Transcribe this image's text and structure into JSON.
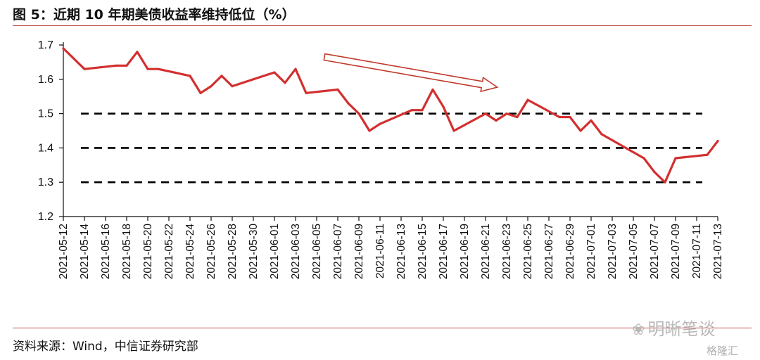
{
  "header": {
    "title": "图 5：近期 10 年期美债收益率维持低位（%）"
  },
  "footer": {
    "source": "资料来源：Wind，中信证券研究部"
  },
  "watermark": {
    "icon": "wechat-icon",
    "text": "明晰笔谈",
    "text2": "格隆汇"
  },
  "colors": {
    "line": "#d32f2f",
    "reference": "#000000",
    "arrow": "#c0392b",
    "rule": "#c0504d"
  },
  "chart_data": {
    "type": "line",
    "ylim": [
      1.2,
      1.7
    ],
    "yticks": [
      "1.2",
      "1.3",
      "1.4",
      "1.5",
      "1.6",
      "1.7"
    ],
    "grid": false,
    "reference_lines": [
      1.5,
      1.4,
      1.3
    ],
    "annotation": "downward-trend-arrow",
    "x_tick_labels": [
      "2021-05-12",
      "2021-05-14",
      "2021-05-16",
      "2021-05-18",
      "2021-05-20",
      "2021-05-22",
      "2021-05-24",
      "2021-05-26",
      "2021-05-28",
      "2021-05-30",
      "2021-06-01",
      "2021-06-03",
      "2021-06-05",
      "2021-06-07",
      "2021-06-09",
      "2021-06-11",
      "2021-06-13",
      "2021-06-15",
      "2021-06-17",
      "2021-06-19",
      "2021-06-21",
      "2021-06-23",
      "2021-06-25",
      "2021-06-27",
      "2021-06-29",
      "2021-07-01",
      "2021-07-03",
      "2021-07-05",
      "2021-07-07",
      "2021-07-09",
      "2021-07-11",
      "2021-07-13"
    ],
    "points": [
      {
        "x": "2021-05-12",
        "y": 1.69
      },
      {
        "x": "2021-05-13",
        "y": 1.66
      },
      {
        "x": "2021-05-14",
        "y": 1.63
      },
      {
        "x": "2021-05-17",
        "y": 1.64
      },
      {
        "x": "2021-05-18",
        "y": 1.64
      },
      {
        "x": "2021-05-19",
        "y": 1.68
      },
      {
        "x": "2021-05-20",
        "y": 1.63
      },
      {
        "x": "2021-05-21",
        "y": 1.63
      },
      {
        "x": "2021-05-24",
        "y": 1.61
      },
      {
        "x": "2021-05-25",
        "y": 1.56
      },
      {
        "x": "2021-05-26",
        "y": 1.58
      },
      {
        "x": "2021-05-27",
        "y": 1.61
      },
      {
        "x": "2021-05-28",
        "y": 1.58
      },
      {
        "x": "2021-06-01",
        "y": 1.62
      },
      {
        "x": "2021-06-02",
        "y": 1.59
      },
      {
        "x": "2021-06-03",
        "y": 1.63
      },
      {
        "x": "2021-06-04",
        "y": 1.56
      },
      {
        "x": "2021-06-07",
        "y": 1.57
      },
      {
        "x": "2021-06-08",
        "y": 1.53
      },
      {
        "x": "2021-06-09",
        "y": 1.5
      },
      {
        "x": "2021-06-10",
        "y": 1.45
      },
      {
        "x": "2021-06-11",
        "y": 1.47
      },
      {
        "x": "2021-06-14",
        "y": 1.51
      },
      {
        "x": "2021-06-15",
        "y": 1.51
      },
      {
        "x": "2021-06-16",
        "y": 1.57
      },
      {
        "x": "2021-06-17",
        "y": 1.52
      },
      {
        "x": "2021-06-18",
        "y": 1.45
      },
      {
        "x": "2021-06-21",
        "y": 1.5
      },
      {
        "x": "2021-06-22",
        "y": 1.48
      },
      {
        "x": "2021-06-23",
        "y": 1.5
      },
      {
        "x": "2021-06-24",
        "y": 1.49
      },
      {
        "x": "2021-06-25",
        "y": 1.54
      },
      {
        "x": "2021-06-28",
        "y": 1.49
      },
      {
        "x": "2021-06-29",
        "y": 1.49
      },
      {
        "x": "2021-06-30",
        "y": 1.45
      },
      {
        "x": "2021-07-01",
        "y": 1.48
      },
      {
        "x": "2021-07-02",
        "y": 1.44
      },
      {
        "x": "2021-07-06",
        "y": 1.37
      },
      {
        "x": "2021-07-07",
        "y": 1.33
      },
      {
        "x": "2021-07-08",
        "y": 1.3
      },
      {
        "x": "2021-07-09",
        "y": 1.37
      },
      {
        "x": "2021-07-12",
        "y": 1.38
      },
      {
        "x": "2021-07-13",
        "y": 1.42
      }
    ]
  }
}
